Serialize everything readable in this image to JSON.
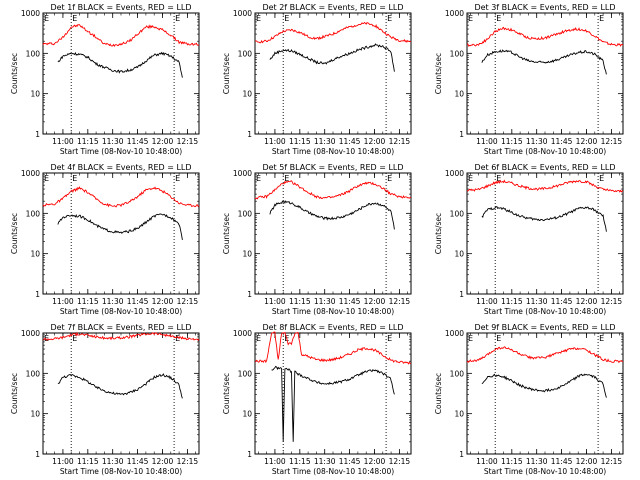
{
  "figure": {
    "xlabel": "Start Time (08-Nov-10 10:48:00)",
    "ylabel": "Counts/sec",
    "y_ticks": [
      "1",
      "10",
      "100",
      "1000"
    ],
    "x_ticks": [
      "11:00",
      "11:15",
      "11:30",
      "11:45",
      "12:00",
      "12:15"
    ],
    "marker_labels": [
      "E",
      "E"
    ],
    "colors": {
      "events": "#000000",
      "lld": "#ff0000"
    }
  },
  "chart_data": [
    {
      "type": "line",
      "title": "Det 1f BLACK = Events, RED = LLD",
      "xlabel": "Start Time (08-Nov-10 10:48:00)",
      "ylabel": "Counts/sec",
      "yscale": "log",
      "ylim": [
        1,
        1000
      ],
      "xlim": [
        "10:48",
        "12:22"
      ],
      "night_markers": [
        "11:05",
        "12:07"
      ],
      "series": [
        {
          "color": "red",
          "x": [
            "10:48",
            "10:55",
            "11:00",
            "11:05",
            "11:10",
            "11:15",
            "11:20",
            "11:25",
            "11:30",
            "11:35",
            "11:40",
            "11:45",
            "11:50",
            "11:55",
            "12:00",
            "12:05",
            "12:10",
            "12:15",
            "12:22"
          ],
          "values": [
            170,
            175,
            250,
            450,
            500,
            350,
            250,
            170,
            160,
            170,
            200,
            300,
            450,
            460,
            380,
            280,
            190,
            170,
            165
          ]
        },
        {
          "color": "black",
          "x": [
            "10:57",
            "11:00",
            "11:05",
            "11:10",
            "11:15",
            "11:20",
            "11:25",
            "11:30",
            "11:35",
            "11:40",
            "11:45",
            "11:50",
            "11:55",
            "12:00",
            "12:05",
            "12:10",
            "12:12"
          ],
          "values": [
            60,
            85,
            100,
            95,
            80,
            55,
            45,
            38,
            35,
            38,
            45,
            65,
            90,
            100,
            85,
            60,
            25
          ]
        }
      ]
    },
    {
      "type": "line",
      "title": "Det 2f BLACK = Events, RED = LLD",
      "xlabel": "Start Time (08-Nov-10 10:48:00)",
      "ylabel": "Counts/sec",
      "yscale": "log",
      "ylim": [
        1,
        1000
      ],
      "xlim": [
        "10:48",
        "12:22"
      ],
      "night_markers": [
        "11:05",
        "12:07"
      ],
      "series": [
        {
          "color": "red",
          "x": [
            "10:48",
            "10:55",
            "11:00",
            "11:05",
            "11:10",
            "11:15",
            "11:20",
            "11:25",
            "11:30",
            "11:35",
            "11:40",
            "11:45",
            "11:50",
            "11:55",
            "12:00",
            "12:05",
            "12:10",
            "12:15",
            "12:22"
          ],
          "values": [
            190,
            200,
            260,
            350,
            380,
            330,
            260,
            230,
            260,
            300,
            380,
            450,
            520,
            550,
            500,
            350,
            250,
            210,
            195
          ]
        },
        {
          "color": "black",
          "x": [
            "10:57",
            "11:00",
            "11:05",
            "11:10",
            "11:15",
            "11:20",
            "11:25",
            "11:30",
            "11:35",
            "11:40",
            "11:45",
            "11:50",
            "11:55",
            "12:00",
            "12:05",
            "12:10",
            "12:12"
          ],
          "values": [
            70,
            100,
            120,
            115,
            95,
            75,
            60,
            55,
            70,
            85,
            100,
            120,
            140,
            160,
            150,
            110,
            35
          ]
        }
      ]
    },
    {
      "type": "line",
      "title": "Det 3f BLACK = Events, RED = LLD",
      "xlabel": "Start Time (08-Nov-10 10:48:00)",
      "ylabel": "Counts/sec",
      "yscale": "log",
      "ylim": [
        1,
        1000
      ],
      "xlim": [
        "10:48",
        "12:22"
      ],
      "night_markers": [
        "11:05",
        "12:07"
      ],
      "series": [
        {
          "color": "red",
          "x": [
            "10:48",
            "10:55",
            "11:00",
            "11:05",
            "11:10",
            "11:15",
            "11:20",
            "11:25",
            "11:30",
            "11:35",
            "11:40",
            "11:45",
            "11:50",
            "11:55",
            "12:00",
            "12:05",
            "12:10",
            "12:15",
            "12:22"
          ],
          "values": [
            160,
            165,
            220,
            350,
            420,
            380,
            300,
            240,
            230,
            240,
            280,
            330,
            380,
            400,
            360,
            270,
            190,
            165,
            160
          ]
        },
        {
          "color": "black",
          "x": [
            "10:57",
            "11:00",
            "11:05",
            "11:10",
            "11:15",
            "11:20",
            "11:25",
            "11:30",
            "11:35",
            "11:40",
            "11:45",
            "11:50",
            "11:55",
            "12:00",
            "12:05",
            "12:10",
            "12:12"
          ],
          "values": [
            60,
            90,
            110,
            115,
            105,
            80,
            65,
            60,
            60,
            65,
            75,
            90,
            105,
            110,
            95,
            65,
            30
          ]
        }
      ]
    },
    {
      "type": "line",
      "title": "Det 4f BLACK = Events, RED = LLD",
      "xlabel": "Start Time (08-Nov-10 10:48:00)",
      "ylabel": "Counts/sec",
      "yscale": "log",
      "ylim": [
        1,
        1000
      ],
      "xlim": [
        "10:48",
        "12:22"
      ],
      "night_markers": [
        "11:05",
        "12:07"
      ],
      "series": [
        {
          "color": "red",
          "x": [
            "10:48",
            "10:55",
            "11:00",
            "11:05",
            "11:10",
            "11:15",
            "11:20",
            "11:25",
            "11:30",
            "11:35",
            "11:40",
            "11:45",
            "11:50",
            "11:55",
            "12:00",
            "12:05",
            "12:10",
            "12:15",
            "12:22"
          ],
          "values": [
            160,
            170,
            230,
            350,
            420,
            330,
            230,
            170,
            150,
            160,
            190,
            260,
            380,
            430,
            360,
            260,
            180,
            160,
            155
          ]
        },
        {
          "color": "black",
          "x": [
            "10:57",
            "11:00",
            "11:05",
            "11:10",
            "11:15",
            "11:20",
            "11:25",
            "11:30",
            "11:35",
            "11:40",
            "11:45",
            "11:50",
            "11:55",
            "12:00",
            "12:05",
            "12:10",
            "12:12"
          ],
          "values": [
            55,
            80,
            90,
            85,
            70,
            50,
            40,
            35,
            33,
            36,
            42,
            60,
            85,
            95,
            80,
            55,
            22
          ]
        }
      ]
    },
    {
      "type": "line",
      "title": "Det 5f BLACK = Events, RED = LLD",
      "xlabel": "Start Time (08-Nov-10 10:48:00)",
      "ylabel": "Counts/sec",
      "yscale": "log",
      "ylim": [
        1,
        1000
      ],
      "xlim": [
        "10:48",
        "12:22"
      ],
      "night_markers": [
        "11:05",
        "12:07"
      ],
      "series": [
        {
          "color": "red",
          "x": [
            "10:48",
            "10:55",
            "11:00",
            "11:05",
            "11:10",
            "11:15",
            "11:20",
            "11:25",
            "11:30",
            "11:35",
            "11:40",
            "11:45",
            "11:50",
            "11:55",
            "12:00",
            "12:05",
            "12:10",
            "12:15",
            "12:22"
          ],
          "values": [
            240,
            260,
            380,
            570,
            600,
            450,
            330,
            260,
            240,
            250,
            290,
            360,
            480,
            560,
            540,
            420,
            300,
            260,
            250
          ]
        },
        {
          "color": "black",
          "x": [
            "10:57",
            "11:00",
            "11:05",
            "11:10",
            "11:15",
            "11:20",
            "11:25",
            "11:30",
            "11:35",
            "11:40",
            "11:45",
            "11:50",
            "11:55",
            "12:00",
            "12:05",
            "12:10",
            "12:12"
          ],
          "values": [
            100,
            160,
            195,
            180,
            140,
            105,
            85,
            75,
            75,
            80,
            95,
            120,
            160,
            180,
            160,
            110,
            40
          ]
        }
      ]
    },
    {
      "type": "line",
      "title": "Det 6f BLACK = Events, RED = LLD",
      "xlabel": "Start Time (08-Nov-10 10:48:00)",
      "ylabel": "Counts/sec",
      "yscale": "log",
      "ylim": [
        1,
        1000
      ],
      "xlim": [
        "10:48",
        "12:22"
      ],
      "night_markers": [
        "11:05",
        "12:07"
      ],
      "series": [
        {
          "color": "red",
          "x": [
            "10:48",
            "10:55",
            "11:00",
            "11:05",
            "11:10",
            "11:15",
            "11:20",
            "11:25",
            "11:30",
            "11:35",
            "11:40",
            "11:45",
            "11:50",
            "11:55",
            "12:00",
            "12:05",
            "12:10",
            "12:15",
            "12:22"
          ],
          "values": [
            370,
            390,
            470,
            580,
            620,
            560,
            470,
            420,
            400,
            410,
            450,
            520,
            600,
            640,
            600,
            480,
            390,
            360,
            350
          ]
        },
        {
          "color": "black",
          "x": [
            "10:57",
            "11:00",
            "11:05",
            "11:10",
            "11:15",
            "11:20",
            "11:25",
            "11:30",
            "11:35",
            "11:40",
            "11:45",
            "11:50",
            "11:55",
            "12:00",
            "12:05",
            "12:10",
            "12:12"
          ],
          "values": [
            80,
            120,
            140,
            130,
            105,
            85,
            75,
            70,
            70,
            75,
            85,
            105,
            130,
            140,
            120,
            85,
            35
          ]
        }
      ]
    },
    {
      "type": "line",
      "title": "Det 7f BLACK = Events, RED = LLD",
      "xlabel": "Start Time (08-Nov-10 10:48:00)",
      "ylabel": "Counts/sec",
      "yscale": "log",
      "ylim": [
        1,
        1000
      ],
      "xlim": [
        "10:48",
        "12:22"
      ],
      "night_markers": [
        "11:05",
        "12:07"
      ],
      "series": [
        {
          "color": "red",
          "x": [
            "10:48",
            "10:55",
            "11:00",
            "11:05",
            "11:10",
            "11:15",
            "11:20",
            "11:25",
            "11:30",
            "11:35",
            "11:40",
            "11:45",
            "11:50",
            "11:55",
            "12:00",
            "12:05",
            "12:10",
            "12:15",
            "12:22"
          ],
          "values": [
            700,
            720,
            780,
            900,
            950,
            880,
            800,
            750,
            740,
            760,
            800,
            880,
            950,
            980,
            920,
            830,
            760,
            720,
            700
          ]
        },
        {
          "color": "black",
          "x": [
            "10:57",
            "11:00",
            "11:05",
            "11:10",
            "11:15",
            "11:20",
            "11:25",
            "11:30",
            "11:35",
            "11:40",
            "11:45",
            "11:50",
            "11:55",
            "12:00",
            "12:05",
            "12:10",
            "12:12"
          ],
          "values": [
            55,
            80,
            90,
            80,
            62,
            45,
            37,
            32,
            30,
            33,
            40,
            55,
            80,
            92,
            78,
            52,
            24
          ]
        }
      ]
    },
    {
      "type": "line",
      "title": "Det 8f BLACK = Events, RED = LLD",
      "xlabel": "Start Time (08-Nov-10 10:48:00)",
      "ylabel": "Counts/sec",
      "yscale": "log",
      "ylim": [
        1,
        1000
      ],
      "xlim": [
        "10:48",
        "12:22"
      ],
      "night_markers": [
        "11:05",
        "12:07"
      ],
      "series": [
        {
          "color": "red",
          "x": [
            "10:48",
            "10:55",
            "10:58",
            "11:00",
            "11:02",
            "11:04",
            "11:06",
            "11:08",
            "11:10",
            "11:12",
            "11:14",
            "11:16",
            "11:20",
            "11:25",
            "11:30",
            "11:35",
            "11:40",
            "11:45",
            "11:50",
            "11:55",
            "12:00",
            "12:05",
            "12:10",
            "12:15",
            "12:22"
          ],
          "values": [
            200,
            200,
            1000,
            1000,
            210,
            1000,
            1000,
            550,
            550,
            1000,
            1000,
            300,
            260,
            220,
            210,
            220,
            250,
            300,
            380,
            420,
            380,
            280,
            210,
            190,
            180
          ]
        },
        {
          "color": "black",
          "x": [
            "10:58",
            "11:00",
            "11:04",
            "11:05",
            "11:06",
            "11:08",
            "11:10",
            "11:11",
            "11:12",
            "11:14",
            "11:20",
            "11:25",
            "11:30",
            "11:35",
            "11:40",
            "11:45",
            "11:50",
            "11:55",
            "12:00",
            "12:05",
            "12:10",
            "12:12"
          ],
          "values": [
            120,
            140,
            130,
            2,
            130,
            125,
            110,
            2,
            110,
            95,
            75,
            60,
            55,
            57,
            62,
            72,
            90,
            110,
            120,
            100,
            70,
            30
          ]
        }
      ]
    },
    {
      "type": "line",
      "title": "Det 9f BLACK = Events, RED = LLD",
      "xlabel": "Start Time (08-Nov-10 10:48:00)",
      "ylabel": "Counts/sec",
      "yscale": "log",
      "ylim": [
        1,
        1000
      ],
      "xlim": [
        "10:48",
        "12:22"
      ],
      "night_markers": [
        "11:05",
        "12:07"
      ],
      "series": [
        {
          "color": "red",
          "x": [
            "10:48",
            "10:55",
            "11:00",
            "11:05",
            "11:10",
            "11:15",
            "11:20",
            "11:25",
            "11:30",
            "11:35",
            "11:40",
            "11:45",
            "11:50",
            "11:55",
            "12:00",
            "12:05",
            "12:10",
            "12:15",
            "12:22"
          ],
          "values": [
            200,
            210,
            280,
            400,
            440,
            380,
            300,
            250,
            240,
            250,
            290,
            340,
            400,
            420,
            380,
            290,
            220,
            200,
            195
          ]
        },
        {
          "color": "black",
          "x": [
            "10:57",
            "11:00",
            "11:05",
            "11:10",
            "11:15",
            "11:20",
            "11:25",
            "11:30",
            "11:35",
            "11:40",
            "11:45",
            "11:50",
            "11:55",
            "12:00",
            "12:05",
            "12:10",
            "12:12"
          ],
          "values": [
            55,
            80,
            90,
            82,
            65,
            50,
            42,
            38,
            37,
            40,
            48,
            62,
            85,
            95,
            80,
            55,
            25
          ]
        }
      ]
    }
  ]
}
